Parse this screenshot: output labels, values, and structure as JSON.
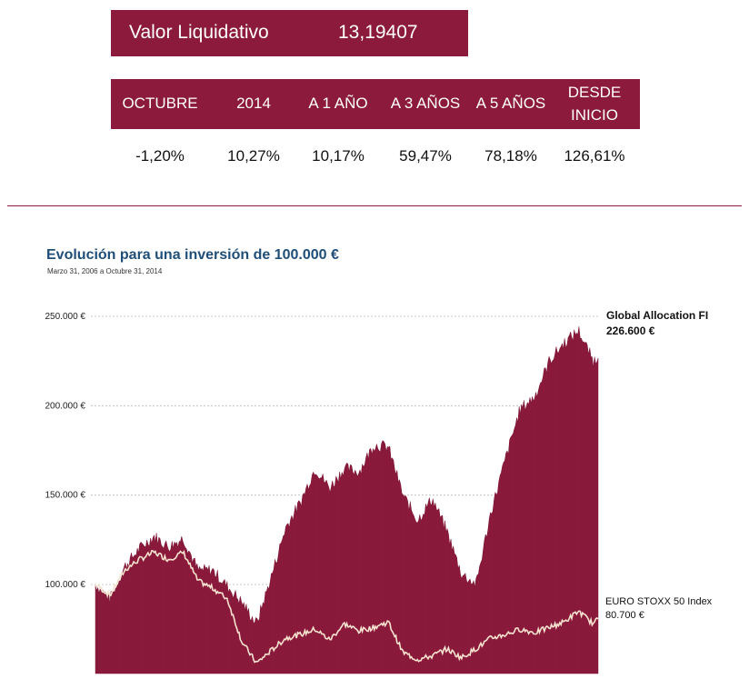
{
  "nav": {
    "label": "Valor Liquidativo",
    "value": "13,19407"
  },
  "returns": {
    "headers": [
      [
        "OCTUBRE"
      ],
      [
        "2014"
      ],
      [
        "A 1 AÑO"
      ],
      [
        "A 3 AÑOS"
      ],
      [
        "A 5 AÑOS"
      ],
      [
        "DESDE",
        "INICIO"
      ]
    ],
    "values": [
      "-1,20%",
      "10,27%",
      "10,17%",
      "59,47%",
      "78,18%",
      "126,61%"
    ]
  },
  "colors": {
    "accent": "#8b1a3c",
    "title": "#1f4e79",
    "benchmark_line": "#f6e3cf"
  },
  "chart_data": {
    "type": "area",
    "title": "Evolución para una inversión de 100.000 €",
    "subtitle": "Marzo 31, 2006 a Octubre 31, 2014",
    "ylim": [
      50000,
      250000
    ],
    "yticks": [
      100000,
      150000,
      200000,
      250000
    ],
    "ytick_labels": [
      "100.000 €",
      "150.000 €",
      "200.000 €",
      "250.000 €"
    ],
    "grid": true,
    "x_start": "2006-03-31",
    "x_end": "2014-10-31",
    "x_months": [
      0,
      3,
      6,
      9,
      12,
      15,
      18,
      21,
      24,
      27,
      30,
      33,
      36,
      39,
      42,
      45,
      48,
      51,
      54,
      57,
      60,
      63,
      66,
      69,
      72,
      75,
      78,
      81,
      84,
      87,
      90,
      93,
      96,
      99,
      102,
      103
    ],
    "series": [
      {
        "name": "Global Allocation FI",
        "end_label": "226.600 €",
        "values": [
          100000,
          92000,
          110000,
          120000,
          127000,
          121000,
          126000,
          108000,
          108000,
          99000,
          90000,
          78000,
          104000,
          132000,
          146000,
          165000,
          154000,
          165000,
          163000,
          178000,
          177000,
          150000,
          136000,
          148000,
          130000,
          106000,
          100000,
          140000,
          170000,
          198000,
          205000,
          225000,
          235000,
          242000,
          225000,
          226600
        ]
      },
      {
        "name": "EURO STOXX 50 Index",
        "end_label": "80.700 €",
        "values": [
          100000,
          94000,
          108000,
          114000,
          118000,
          114000,
          118000,
          102000,
          98000,
          92000,
          68000,
          56000,
          63000,
          70000,
          72000,
          75000,
          69000,
          78000,
          74000,
          76000,
          79000,
          62000,
          58000,
          60000,
          64000,
          59000,
          64000,
          70000,
          72000,
          75000,
          73000,
          76000,
          79000,
          85000,
          78000,
          80700
        ]
      }
    ]
  }
}
